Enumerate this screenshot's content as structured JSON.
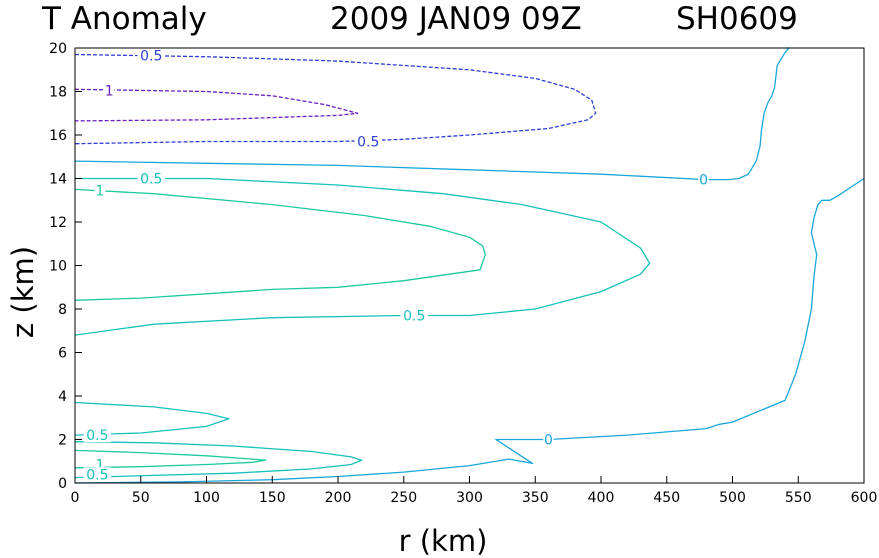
{
  "chart_data": {
    "type": "line",
    "title": {
      "variable": "T Anomaly",
      "date": "2009 JAN09 09Z",
      "storm": "SH0609"
    },
    "xlabel": "r (km)",
    "ylabel": "z (km)",
    "xlim": [
      0,
      600
    ],
    "ylim": [
      0,
      20
    ],
    "xticks": [
      0,
      50,
      100,
      150,
      200,
      250,
      300,
      350,
      400,
      450,
      500,
      550,
      600
    ],
    "yticks": [
      0,
      2,
      4,
      6,
      8,
      10,
      12,
      14,
      16,
      18,
      20
    ],
    "grid": false,
    "colors": {
      "zero": "#1aa6d9",
      "pos_half": "#16c1b9",
      "pos_one": "#1fc9a0",
      "neg_half": "#2f3fd6",
      "neg_one": "#6a1fc0"
    },
    "series": [
      {
        "name": "0 upper",
        "level": "0",
        "colorKey": "zero",
        "dashed": false,
        "x": [
          0,
          100,
          200,
          300,
          400,
          480,
          497,
          505,
          512,
          518,
          521,
          522,
          524,
          527,
          530,
          532,
          533,
          534,
          537,
          540,
          543,
          540
        ],
        "y": [
          14.8,
          14.7,
          14.6,
          14.4,
          14.2,
          13.95,
          13.95,
          14.0,
          14.2,
          14.8,
          15.5,
          16.2,
          17.0,
          17.5,
          17.8,
          18.2,
          18.7,
          19.2,
          19.5,
          19.8,
          20.0,
          20.0
        ]
      },
      {
        "name": "0 lower",
        "level": "0",
        "colorKey": "zero",
        "dashed": false,
        "x": [
          0,
          80,
          150,
          200,
          250,
          300,
          330,
          348,
          320,
          340,
          360,
          420,
          480,
          490,
          500,
          520,
          540,
          548,
          555,
          560,
          562,
          564,
          560,
          562,
          565,
          568,
          570,
          574,
          580,
          600
        ],
        "y": [
          0.0,
          0.05,
          0.15,
          0.3,
          0.5,
          0.8,
          1.1,
          0.9,
          2.0,
          2.0,
          2.0,
          2.2,
          2.5,
          2.7,
          2.8,
          3.3,
          3.8,
          5.0,
          6.5,
          8.0,
          9.5,
          10.5,
          11.5,
          12.2,
          12.8,
          13.0,
          13.0,
          13.0,
          13.2,
          14.0
        ]
      },
      {
        "name": "0.5 upper",
        "level": "0.5",
        "colorKey": "pos_half",
        "dashed": false,
        "x": [
          0,
          100,
          200,
          280,
          340,
          400,
          430,
          437,
          430,
          400,
          350,
          300,
          250,
          150,
          60,
          0
        ],
        "y": [
          14.0,
          14.0,
          13.7,
          13.3,
          12.8,
          12.0,
          10.8,
          10.1,
          9.6,
          8.8,
          8.0,
          7.7,
          7.7,
          7.6,
          7.3,
          6.8
        ]
      },
      {
        "name": "1 upper",
        "level": "1",
        "colorKey": "pos_one",
        "dashed": false,
        "x": [
          0,
          60,
          150,
          220,
          270,
          300,
          310,
          312,
          308,
          250,
          200,
          150,
          100,
          50,
          0
        ],
        "y": [
          13.5,
          13.3,
          12.8,
          12.3,
          11.8,
          11.3,
          10.9,
          10.5,
          9.8,
          9.3,
          9.0,
          8.9,
          8.7,
          8.5,
          8.4
        ]
      },
      {
        "name": "0.5 lower",
        "level": "0.5",
        "colorKey": "pos_half",
        "dashed": false,
        "x": [
          0,
          60,
          100,
          117,
          100,
          50,
          0
        ],
        "y": [
          3.7,
          3.5,
          3.2,
          2.95,
          2.6,
          2.3,
          2.2
        ]
      },
      {
        "name": "0.5 mid",
        "level": "0.5",
        "colorKey": "pos_half",
        "dashed": false,
        "x": [
          0,
          60,
          120,
          180,
          210,
          218,
          210,
          180,
          120,
          60,
          0
        ],
        "y": [
          1.9,
          1.85,
          1.7,
          1.45,
          1.2,
          1.05,
          0.85,
          0.65,
          0.45,
          0.35,
          0.25
        ]
      },
      {
        "name": "1 lower",
        "level": "1",
        "colorKey": "pos_one",
        "dashed": false,
        "x": [
          0,
          50,
          100,
          135,
          145,
          135,
          100,
          50,
          0
        ],
        "y": [
          1.5,
          1.4,
          1.25,
          1.1,
          1.05,
          0.95,
          0.85,
          0.75,
          0.7
        ]
      },
      {
        "name": "-0.5 upper",
        "level": "-0.5",
        "colorKey": "neg_half",
        "dashed": true,
        "x": [
          0,
          100,
          200,
          300,
          350,
          380,
          393,
          396,
          390,
          360,
          300,
          250,
          200,
          100,
          0
        ],
        "y": [
          19.7,
          19.6,
          19.4,
          19.0,
          18.6,
          18.1,
          17.6,
          17.0,
          16.7,
          16.3,
          16.0,
          15.8,
          15.7,
          15.7,
          15.6
        ]
      },
      {
        "name": "-1 upper",
        "level": "-1",
        "colorKey": "neg_one",
        "dashed": true,
        "x": [
          0,
          100,
          150,
          190,
          215,
          200,
          150,
          100,
          0
        ],
        "y": [
          18.1,
          18.0,
          17.8,
          17.4,
          17.0,
          16.9,
          16.8,
          16.7,
          16.65
        ]
      }
    ],
    "contour_labels": [
      {
        "text": "0",
        "x": 478,
        "y": 13.95,
        "colorKey": "zero"
      },
      {
        "text": "0",
        "x": 360,
        "y": 2.0,
        "colorKey": "zero"
      },
      {
        "text": "0.5",
        "x": 58,
        "y": 19.65,
        "colorKey": "neg_half"
      },
      {
        "text": "1",
        "x": 26,
        "y": 18.05,
        "colorKey": "neg_one"
      },
      {
        "text": "0.5",
        "x": 223,
        "y": 15.7,
        "colorKey": "neg_half"
      },
      {
        "text": "0.5",
        "x": 58,
        "y": 14.0,
        "colorKey": "pos_half"
      },
      {
        "text": "1",
        "x": 19,
        "y": 13.45,
        "colorKey": "pos_one"
      },
      {
        "text": "0.5",
        "x": 258,
        "y": 7.7,
        "colorKey": "pos_half"
      },
      {
        "text": "0.5",
        "x": 17,
        "y": 2.2,
        "colorKey": "pos_half"
      },
      {
        "text": "1",
        "x": 19,
        "y": 0.85,
        "colorKey": "pos_one"
      },
      {
        "text": "0.5",
        "x": 17,
        "y": 0.4,
        "colorKey": "pos_half"
      }
    ]
  }
}
